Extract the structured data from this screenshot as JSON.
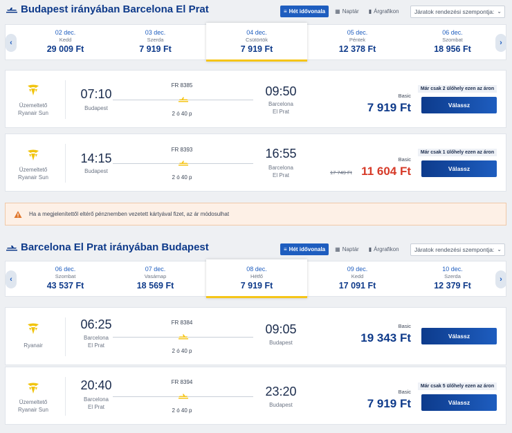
{
  "colors": {
    "brand": "#0e3a8a",
    "accent": "#1e5dbf",
    "promo_price": "#d63a28",
    "selected_date": "#f5c518"
  },
  "view_tabs": [
    "Hét idővonala",
    "Naptár",
    "Árgrafikon"
  ],
  "sort_placeholder": "Járatok rendezési szempontja:",
  "outbound": {
    "title": "Budapest irányában Barcelona El Prat",
    "dates": [
      {
        "date": "02 dec.",
        "weekday": "Kedd",
        "price": "29 009 Ft"
      },
      {
        "date": "03 dec.",
        "weekday": "Szerda",
        "price": "7 919 Ft"
      },
      {
        "date": "04 dec.",
        "weekday": "Csütörtök",
        "price": "7 919 Ft"
      },
      {
        "date": "05 dec.",
        "weekday": "Péntek",
        "price": "12 378 Ft"
      },
      {
        "date": "06 dec.",
        "weekday": "Szombat",
        "price": "18 956 Ft"
      }
    ],
    "flights": [
      {
        "operator_line1": "Üzemeltető",
        "operator_line2": "Ryanair Sun",
        "dep_time": "07:10",
        "dep_city": "Budapest",
        "flight_no": "FR 8385",
        "duration": "2 ó 40 p",
        "arr_time": "09:50",
        "arr_city_line1": "Barcelona",
        "arr_city_line2": "El Prat",
        "fare": "Basic",
        "old_price": "",
        "price": "7 919 Ft",
        "seats": "Már csak 2 ülőhely ezen az áron",
        "button": "Válassz"
      },
      {
        "operator_line1": "Üzemeltető",
        "operator_line2": "Ryanair Sun",
        "dep_time": "14:15",
        "dep_city": "Budapest",
        "flight_no": "FR 8393",
        "duration": "2 ó 40 p",
        "arr_time": "16:55",
        "arr_city_line1": "Barcelona",
        "arr_city_line2": "El Prat",
        "fare": "Basic",
        "old_price": "17 749 Ft",
        "price": "11 604 Ft",
        "seats": "Már csak 1 ülőhely ezen az áron",
        "button": "Válassz"
      }
    ]
  },
  "notice": "Ha a megjelenítettől eltérő pénznemben vezetett kártyával fizet, az ár módosulhat",
  "inbound": {
    "title": "Barcelona El Prat irányában Budapest",
    "dates": [
      {
        "date": "06 dec.",
        "weekday": "Szombat",
        "price": "43 537 Ft"
      },
      {
        "date": "07 dec.",
        "weekday": "Vasárnap",
        "price": "18 569 Ft"
      },
      {
        "date": "08 dec.",
        "weekday": "Hétfő",
        "price": "7 919 Ft"
      },
      {
        "date": "09 dec.",
        "weekday": "Kedd",
        "price": "17 091 Ft"
      },
      {
        "date": "10 dec.",
        "weekday": "Szerda",
        "price": "12 379 Ft"
      }
    ],
    "flights": [
      {
        "operator_line1": "",
        "operator_line2": "Ryanair",
        "dep_time": "06:25",
        "dep_city_line1": "Barcelona",
        "dep_city_line2": "El Prat",
        "flight_no": "FR 8384",
        "duration": "2 ó 40 p",
        "arr_time": "09:05",
        "arr_city": "Budapest",
        "fare": "Basic",
        "price": "19 343 Ft",
        "seats": "",
        "button": "Válassz"
      },
      {
        "operator_line1": "Üzemeltető",
        "operator_line2": "Ryanair Sun",
        "dep_time": "20:40",
        "dep_city_line1": "Barcelona",
        "dep_city_line2": "El Prat",
        "flight_no": "FR 8394",
        "duration": "2 ó 40 p",
        "arr_time": "23:20",
        "arr_city": "Budapest",
        "fare": "Basic",
        "price": "7 919 Ft",
        "seats": "Már csak 5 ülőhely ezen az áron",
        "button": "Válassz"
      }
    ]
  }
}
